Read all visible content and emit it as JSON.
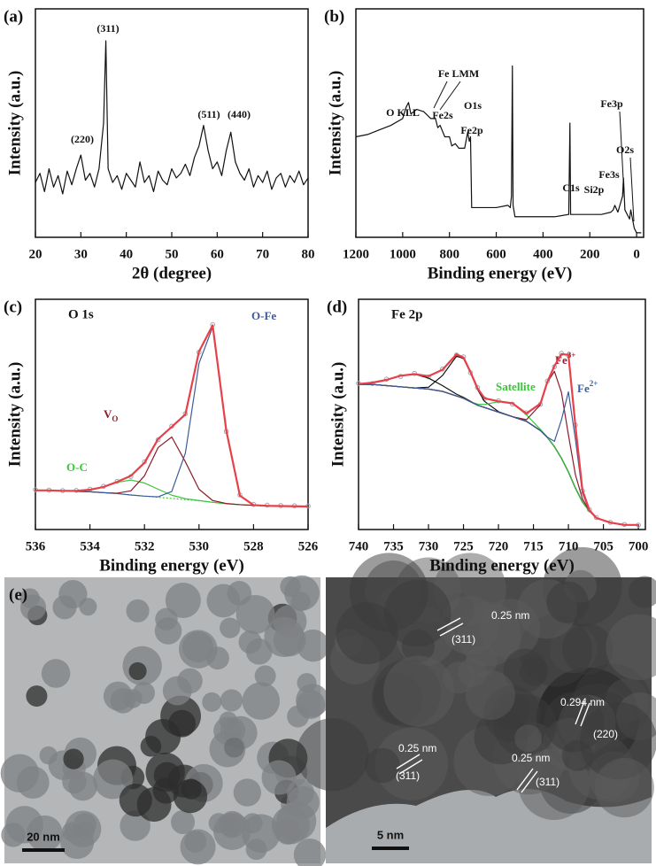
{
  "chart_data": [
    {
      "type": "line",
      "panel_label": "(a)",
      "xlabel": "2θ (degree)",
      "ylabel": "Intensity (a.u.)",
      "xlim": [
        20,
        80
      ],
      "xticks": [
        20,
        30,
        40,
        50,
        60,
        70,
        80
      ],
      "ylim": [
        0,
        100
      ],
      "yticks": [],
      "x": [
        20,
        21,
        22,
        23,
        24,
        25,
        26,
        27,
        28,
        29,
        30,
        31,
        32,
        33,
        34,
        35,
        35.5,
        36,
        37,
        38,
        39,
        40,
        41,
        42,
        43,
        44,
        45,
        46,
        47,
        48,
        49,
        50,
        51,
        52,
        53,
        54,
        55,
        56,
        57,
        58,
        59,
        60,
        61,
        62,
        63,
        64,
        65,
        66,
        67,
        68,
        69,
        70,
        71,
        72,
        73,
        74,
        75,
        76,
        77,
        78,
        79,
        80
      ],
      "series": [
        {
          "color": "#111111",
          "values": [
            24,
            28,
            20,
            30,
            22,
            27,
            19,
            29,
            23,
            30,
            36,
            25,
            28,
            22,
            30,
            50,
            86,
            30,
            24,
            27,
            21,
            28,
            25,
            22,
            33,
            24,
            27,
            20,
            29,
            25,
            23,
            30,
            26,
            28,
            32,
            27,
            35,
            40,
            49,
            38,
            30,
            33,
            27,
            38,
            46,
            33,
            28,
            25,
            30,
            22,
            27,
            24,
            29,
            21,
            26,
            28,
            22,
            27,
            24,
            29,
            23,
            26
          ]
        }
      ],
      "annotations": [
        "(220)",
        "(311)",
        "(511)",
        "(440)"
      ]
    },
    {
      "type": "line",
      "panel_label": "(b)",
      "xlabel": "Binding energy (eV)",
      "ylabel": "Intensity (a.u.)",
      "xlim": [
        1200,
        -30
      ],
      "xticks": [
        1200,
        1000,
        800,
        600,
        400,
        200,
        0
      ],
      "ylim": [
        0,
        100
      ],
      "yticks": [],
      "x": [
        1200,
        1150,
        1100,
        1050,
        1000,
        985,
        975,
        965,
        940,
        910,
        880,
        860,
        850,
        840,
        820,
        800,
        790,
        775,
        760,
        735,
        722,
        715,
        710,
        705,
        650,
        600,
        550,
        540,
        535,
        531,
        528,
        520,
        450,
        400,
        350,
        290,
        285,
        282,
        200,
        150,
        110,
        100,
        93,
        80,
        60,
        56,
        50,
        30,
        25,
        10,
        0,
        -20
      ],
      "series": [
        {
          "color": "#111111",
          "values": [
            44,
            45,
            47,
            49,
            52,
            57,
            59,
            54,
            56,
            55,
            52,
            52,
            48,
            49,
            44,
            44,
            40,
            41,
            39,
            39,
            46,
            42,
            44,
            13,
            13,
            13,
            14,
            13,
            18,
            75,
            14,
            9,
            9,
            9,
            9,
            10,
            50,
            10,
            10,
            10,
            11,
            12,
            14,
            11,
            18,
            26,
            12,
            8,
            12,
            4,
            2,
            2
          ]
        }
      ],
      "annotations": [
        "O KLL",
        "Fe LMM",
        "Fe2s",
        "Fe2p",
        "O1s",
        "C1s",
        "Fe3p",
        "Fe3s",
        "Si2p",
        "O2s"
      ]
    },
    {
      "type": "line",
      "panel_label": "(c)",
      "title": "O 1s",
      "xlabel": "Binding energy (eV)",
      "ylabel": "Intensity (a.u.)",
      "xlim": [
        536,
        526
      ],
      "xticks": [
        536,
        534,
        532,
        530,
        528,
        526
      ],
      "ylim": [
        0,
        100
      ],
      "yticks": [],
      "x": [
        536,
        535.5,
        535,
        534.5,
        534,
        533.5,
        533,
        532.5,
        532,
        531.5,
        531,
        530.5,
        530,
        529.5,
        529,
        528.5,
        528,
        527.5,
        527,
        526.5,
        526
      ],
      "series": [
        {
          "color": "#9aa5b0",
          "style": "points",
          "values": [
            17.3,
            17.1,
            16.9,
            17,
            17.5,
            18.8,
            20.9,
            23,
            29.4,
            39,
            44.9,
            50.3,
            77,
            89,
            42.6,
            15,
            10.9,
            10.6,
            10.4,
            10.3,
            10.2
          ]
        },
        {
          "color": "#3cc43c",
          "dash": true,
          "values": [
            17,
            17,
            16.8,
            16.6,
            16.4,
            16,
            15.6,
            15,
            14.5,
            14,
            13.5,
            13,
            12.5,
            11.8,
            11.2,
            10.8,
            10.5,
            10.3,
            10.2,
            10.1,
            10
          ]
        },
        {
          "name": "O-C",
          "color": "#3cc43c",
          "values": [
            17,
            17,
            16.8,
            16.8,
            17.3,
            18.5,
            20.5,
            21.5,
            20.2,
            17.5,
            14.9,
            13.4,
            12.6,
            11.8,
            11.2,
            10.8,
            10.5,
            10.3,
            10.2,
            10.1,
            10
          ]
        },
        {
          "name": "V",
          "name_sub": "O",
          "color": "#8b1c2c",
          "values": [
            17,
            17,
            16.8,
            16.6,
            16.4,
            16,
            15.8,
            16.8,
            23.3,
            35.6,
            40.2,
            29.4,
            17.5,
            12.6,
            11.3,
            10.8,
            10.5,
            10.3,
            10.2,
            10.1,
            10
          ]
        },
        {
          "name": "O-Fe",
          "color": "#3b5b9a",
          "values": [
            17,
            17,
            16.8,
            16.6,
            16.4,
            16,
            15.6,
            15,
            14.5,
            14.2,
            16.5,
            33.2,
            72.2,
            87.9,
            42.9,
            14.7,
            10.6,
            10.3,
            10.2,
            10.1,
            10
          ]
        },
        {
          "color": "#e8404a",
          "values": [
            17,
            17,
            16.8,
            16.8,
            17.3,
            18.5,
            20.7,
            23.3,
            29,
            39.3,
            44.6,
            50,
            77.3,
            88.7,
            43,
            14.7,
            10.6,
            10.3,
            10.2,
            10.1,
            10
          ]
        }
      ]
    },
    {
      "type": "line",
      "panel_label": "(d)",
      "title": "Fe 2p",
      "xlabel": "Binding energy (eV)",
      "ylabel": "Intensity (a.u.)",
      "xlim": [
        740,
        699
      ],
      "xticks": [
        740,
        735,
        730,
        725,
        720,
        715,
        710,
        705,
        700
      ],
      "ylim": [
        0,
        100
      ],
      "yticks": [],
      "x": [
        740,
        738,
        736,
        734,
        732,
        730,
        728,
        726,
        725,
        724,
        723,
        722,
        720,
        718,
        716,
        714,
        713,
        712,
        711,
        710,
        709,
        708,
        707,
        706,
        704,
        702,
        700
      ],
      "series": [
        {
          "color": "#9aa5b0",
          "style": "points",
          "values": [
            63.5,
            63.4,
            65.3,
            66.5,
            67.8,
            66.3,
            69.7,
            75.8,
            75,
            68.1,
            61.7,
            56.8,
            55.9,
            54.5,
            50.7,
            54.4,
            64.5,
            70.7,
            76.5,
            75.6,
            45.4,
            16.8,
            8.6,
            5.2,
            3.1,
            2.2,
            1.9
          ]
        },
        {
          "color": "#111111",
          "values": [
            63,
            63,
            62.5,
            62,
            61.5,
            61,
            60,
            58,
            57,
            55.5,
            54,
            53,
            51,
            49,
            47,
            43,
            40,
            36,
            31,
            25,
            18,
            12,
            8,
            5,
            3,
            2,
            2
          ]
        },
        {
          "color": "#111111",
          "values": [
            63.2,
            63.8,
            65,
            66.8,
            67.5,
            65.8,
            62.5,
            58.8,
            57.4,
            55.7,
            54,
            53,
            51,
            49,
            47,
            43,
            40,
            36,
            31,
            25,
            18,
            12,
            8,
            5,
            3,
            2,
            2
          ]
        },
        {
          "color": "#111111",
          "values": [
            63,
            63,
            62.5,
            62,
            61.5,
            61.8,
            66.9,
            75.3,
            74.3,
            68.2,
            60.9,
            55.7,
            51.2,
            49,
            47,
            43,
            40,
            36,
            31,
            25,
            18,
            12,
            8,
            5,
            3,
            2,
            2
          ]
        },
        {
          "name": "Satellite",
          "color": "#3cc43c",
          "values": [
            63,
            63,
            62.5,
            62,
            61.5,
            61,
            60,
            58,
            57,
            55.5,
            54.5,
            54.3,
            55.5,
            54.8,
            49.8,
            43.5,
            40.1,
            36,
            31,
            25,
            18,
            12,
            8,
            5,
            3,
            2,
            2
          ]
        },
        {
          "name": "Fe",
          "name_sup": "3+",
          "color": "#8b1c2c",
          "values": [
            63,
            63,
            62.5,
            62,
            61.5,
            61,
            60,
            58,
            57,
            55.5,
            54,
            53,
            51,
            49,
            47.7,
            54.2,
            64,
            68.7,
            59.6,
            41.1,
            23.8,
            13.3,
            8.2,
            5,
            3,
            2,
            2
          ]
        },
        {
          "name": "Fe",
          "name_sup": "2+",
          "color": "#3b5b9a",
          "values": [
            63,
            63,
            62.5,
            62,
            61.5,
            61,
            60,
            58,
            57,
            55.5,
            54,
            53,
            51,
            49,
            47,
            43,
            40.1,
            38.3,
            47.6,
            59.8,
            39.2,
            15.8,
            8.2,
            5,
            3,
            2,
            2
          ]
        },
        {
          "color": "#e8404a",
          "values": [
            63.2,
            63.8,
            65,
            66.8,
            67.5,
            66.6,
            69.4,
            76.1,
            74.7,
            68.4,
            61.4,
            57,
            55.7,
            54.8,
            50.4,
            54.7,
            64.2,
            71,
            76.2,
            75.9,
            45,
            17.1,
            8.4,
            5,
            3,
            2,
            2
          ]
        }
      ]
    }
  ],
  "figure_e": {
    "panel_label": "(e)",
    "left": {
      "scale_bar": "20 nm"
    },
    "right": {
      "scale_bar": "5 nm",
      "spacings": [
        {
          "d": "0.25 nm",
          "plane": "(311)"
        },
        {
          "d": "0.294 nm",
          "plane": "(220)"
        },
        {
          "d": "0.25 nm",
          "plane": "(311)"
        },
        {
          "d": "0.25 nm",
          "plane": "(311)"
        }
      ]
    }
  }
}
